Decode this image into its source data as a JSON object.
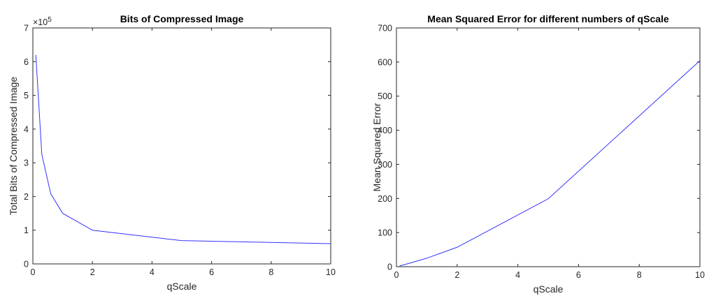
{
  "chart_data": [
    {
      "type": "line",
      "title": "Bits of Compressed Image",
      "xlabel": "qScale",
      "ylabel": "Total Bits of Compressed Image",
      "y_exponent_label": "×10",
      "y_exponent_power": "5",
      "xlim": [
        0,
        10
      ],
      "ylim": [
        0,
        7
      ],
      "xticks": [
        0,
        2,
        4,
        6,
        8,
        10
      ],
      "yticks": [
        0,
        1,
        2,
        3,
        4,
        5,
        6,
        7
      ],
      "grid": false,
      "line_color": "#3333ff",
      "series": [
        {
          "x": [
            0.1,
            0.3,
            0.6,
            1,
            2,
            5,
            10
          ],
          "values": [
            6.2,
            3.25,
            2.08,
            1.5,
            1.0,
            0.69,
            0.6
          ]
        }
      ]
    },
    {
      "type": "line",
      "title": "Mean Squared Error for different numbers of qScale",
      "xlabel": "qScale",
      "ylabel": "Mean Squared Error",
      "xlim": [
        0,
        10
      ],
      "ylim": [
        0,
        700
      ],
      "xticks": [
        0,
        2,
        4,
        6,
        8,
        10
      ],
      "yticks": [
        0,
        100,
        200,
        300,
        400,
        500,
        600,
        700
      ],
      "grid": false,
      "line_color": "#3333ff",
      "series": [
        {
          "x": [
            0.1,
            0.5,
            1,
            2,
            5,
            10
          ],
          "values": [
            2,
            12,
            25,
            57,
            199,
            604
          ]
        }
      ]
    }
  ]
}
